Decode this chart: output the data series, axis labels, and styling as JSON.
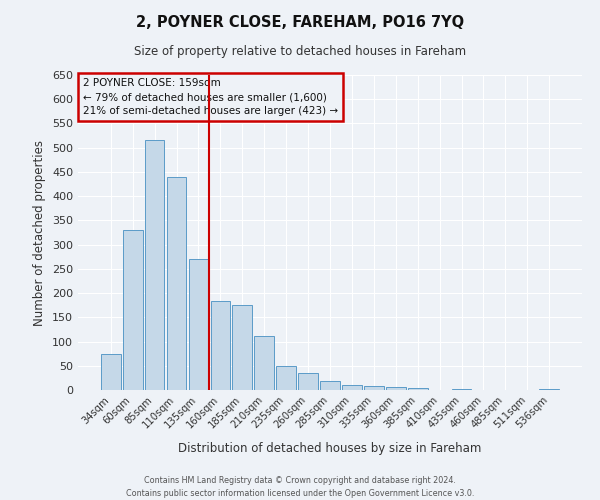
{
  "title": "2, POYNER CLOSE, FAREHAM, PO16 7YQ",
  "subtitle": "Size of property relative to detached houses in Fareham",
  "xlabel": "Distribution of detached houses by size in Fareham",
  "ylabel": "Number of detached properties",
  "bar_labels": [
    "34sqm",
    "60sqm",
    "85sqm",
    "110sqm",
    "135sqm",
    "160sqm",
    "185sqm",
    "210sqm",
    "235sqm",
    "260sqm",
    "285sqm",
    "310sqm",
    "335sqm",
    "360sqm",
    "385sqm",
    "410sqm",
    "435sqm",
    "460sqm",
    "485sqm",
    "511sqm",
    "536sqm"
  ],
  "bar_values": [
    75,
    330,
    515,
    440,
    270,
    183,
    175,
    112,
    50,
    35,
    18,
    10,
    8,
    6,
    5,
    0,
    3,
    0,
    0,
    0,
    3
  ],
  "bar_color": "#c5d8e8",
  "bar_edgecolor": "#5b9bc8",
  "vline_x": 4.5,
  "annotation_title": "2 POYNER CLOSE: 159sqm",
  "annotation_line1": "← 79% of detached houses are smaller (1,600)",
  "annotation_line2": "21% of semi-detached houses are larger (423) →",
  "annotation_box_edgecolor": "#cc0000",
  "vline_color": "#cc0000",
  "ylim": [
    0,
    650
  ],
  "yticks": [
    0,
    50,
    100,
    150,
    200,
    250,
    300,
    350,
    400,
    450,
    500,
    550,
    600,
    650
  ],
  "bg_color": "#eef2f7",
  "grid_color": "#ffffff",
  "footer1": "Contains HM Land Registry data © Crown copyright and database right 2024.",
  "footer2": "Contains public sector information licensed under the Open Government Licence v3.0."
}
